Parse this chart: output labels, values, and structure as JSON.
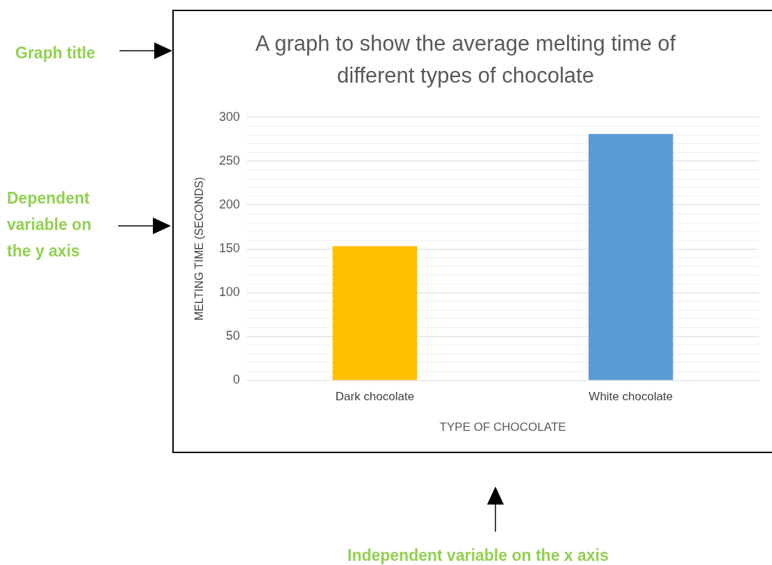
{
  "chart_data": {
    "type": "bar",
    "title": "A graph to show the average melting time of different types of chocolate",
    "xlabel": "TYPE OF CHOCOLATE",
    "ylabel": "MELTING TIME (SECONDS)",
    "categories": [
      "Dark chocolate",
      "White chocolate"
    ],
    "values": [
      153,
      281
    ],
    "colors": [
      "#ffc000",
      "#5b9bd5"
    ],
    "ylim": [
      0,
      300
    ],
    "yticks": [
      0,
      {
        "value": 10,
        "label": null
      },
      {
        "value": 20,
        "label": null
      },
      {
        "value": 30,
        "label": null
      },
      {
        "value": 40,
        "label": null
      },
      50,
      {
        "value": 60,
        "label": null
      },
      {
        "value": 70,
        "label": null
      },
      {
        "value": 80,
        "label": null
      },
      {
        "value": 90,
        "label": null
      },
      100,
      {
        "value": 110,
        "label": null
      },
      {
        "value": 120,
        "label": null
      },
      {
        "value": 130,
        "label": null
      },
      {
        "value": 140,
        "label": null
      },
      150,
      {
        "value": 160,
        "label": null
      },
      {
        "value": 170,
        "label": null
      },
      {
        "value": 180,
        "label": null
      },
      {
        "value": 190,
        "label": null
      },
      200,
      {
        "value": 210,
        "label": null
      },
      {
        "value": 220,
        "label": null
      },
      {
        "value": 230,
        "label": null
      },
      {
        "value": 240,
        "label": null
      },
      250,
      {
        "value": 260,
        "label": null
      },
      {
        "value": 270,
        "label": null
      },
      {
        "value": 280,
        "label": null
      },
      {
        "value": 290,
        "label": null
      },
      300
    ],
    "grid": "y",
    "legend": false,
    "annotations": [
      "Graph title",
      "Dependent variable on the y axis",
      "Independent variable on the x axis"
    ]
  }
}
